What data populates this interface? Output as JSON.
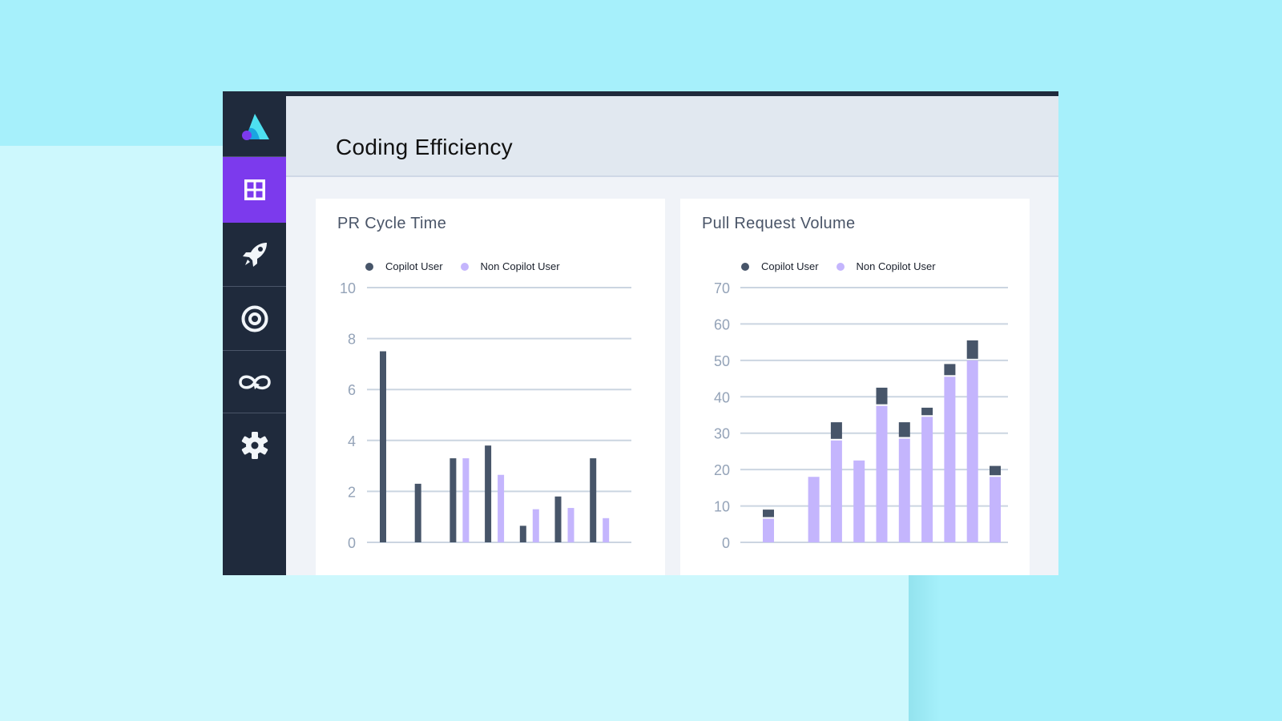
{
  "header": {
    "title": "Coding Efficiency"
  },
  "sidebar": {
    "items": [
      {
        "icon": "logo-icon"
      },
      {
        "icon": "dashboard-grid-icon",
        "active": true
      },
      {
        "icon": "rocket-icon"
      },
      {
        "icon": "target-icon"
      },
      {
        "icon": "loop-icon"
      },
      {
        "icon": "gear-icon"
      }
    ]
  },
  "colors": {
    "copilot": "#475569",
    "non_copilot": "#c4b5fd",
    "accent": "#7c3aed",
    "sidebar": "#1f2a3c"
  },
  "chart_data": [
    {
      "type": "bar",
      "title": "PR Cycle Time",
      "legend": [
        "Copilot User",
        "Non Copilot User"
      ],
      "legend_position": "top",
      "ylim": [
        0,
        10
      ],
      "yticks": [
        0,
        2,
        4,
        6,
        8,
        10
      ],
      "grid": true,
      "series": [
        {
          "name": "Copilot User",
          "values": [
            7.5,
            2.3,
            3.3,
            3.8,
            0.65,
            1.8,
            3.3
          ]
        },
        {
          "name": "Non Copilot User",
          "values": [
            null,
            null,
            3.3,
            2.65,
            1.3,
            1.35,
            0.95
          ]
        }
      ]
    },
    {
      "type": "bar",
      "stacked": true,
      "title": "Pull Request Volume",
      "legend": [
        "Copilot User",
        "Non Copilot User"
      ],
      "legend_position": "top",
      "ylim": [
        0,
        70
      ],
      "yticks": [
        0,
        10,
        20,
        30,
        40,
        50,
        60,
        70
      ],
      "grid": true,
      "series": [
        {
          "name": "Copilot User",
          "values": [
            1.5,
            0,
            0,
            4,
            0,
            4,
            3.5,
            1.5,
            2.5,
            4.5,
            2
          ]
        },
        {
          "name": "Non Copilot User",
          "values": [
            6.5,
            0,
            18,
            28,
            22.5,
            37.5,
            28.5,
            34.5,
            45.5,
            50,
            18
          ]
        }
      ]
    }
  ]
}
